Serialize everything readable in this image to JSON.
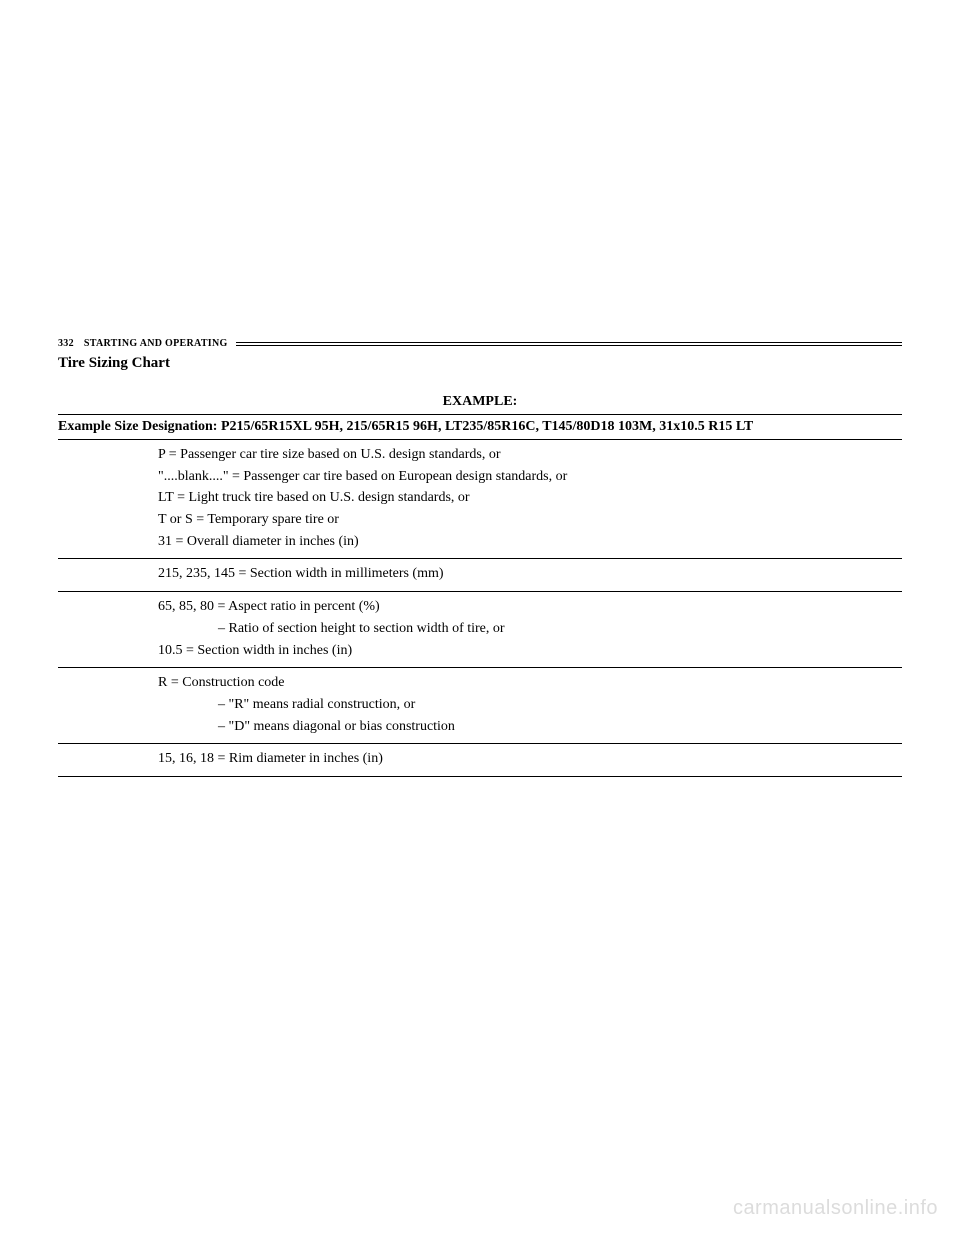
{
  "header": {
    "page_number": "332",
    "section_name": "STARTING AND OPERATING"
  },
  "title": "Tire Sizing Chart",
  "example_label": "EXAMPLE:",
  "designation": "Example Size Designation: P215/65R15XL 95H, 215/65R15 96H, LT235/85R16C, T145/80D18 103M, 31x10.5 R15 LT",
  "sections": [
    {
      "lines": [
        "P = Passenger car tire size based on U.S. design standards, or",
        "\"....blank....\" = Passenger car tire based on European design standards, or",
        "LT = Light truck tire based on U.S. design standards, or",
        "T or S = Temporary spare tire or",
        "31 = Overall diameter in inches (in)"
      ]
    },
    {
      "lines": [
        "215, 235, 145 = Section width in millimeters (mm)"
      ]
    },
    {
      "lines": [
        "65, 85, 80 = Aspect ratio in percent (%)"
      ],
      "sublines": [
        "– Ratio of section height to section width of tire, or"
      ],
      "trailing": [
        "10.5 = Section width in inches (in)"
      ]
    },
    {
      "lines": [
        "R = Construction code"
      ],
      "sublines": [
        "– \"R\" means radial construction, or",
        "– \"D\" means diagonal or bias construction"
      ]
    },
    {
      "lines": [
        "15, 16, 18 = Rim diameter in inches (in)"
      ]
    }
  ],
  "watermark": "carmanualsonline.info"
}
